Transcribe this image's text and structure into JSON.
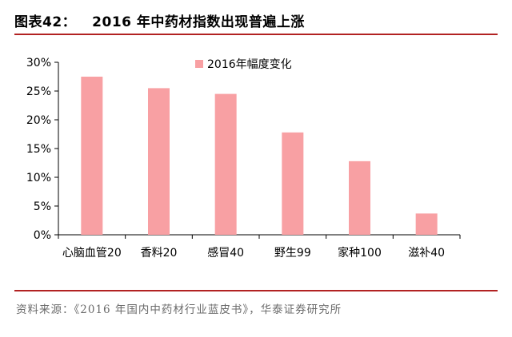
{
  "figure": {
    "label": "图表42：",
    "title": "2016 年中药材指数出现普遍上涨"
  },
  "source": "资料来源：《2016 年国内中药材行业蓝皮书》，华泰证券研究所",
  "colors": {
    "bar": "#f8a0a3",
    "rule": "#b22222",
    "axis": "#000000"
  },
  "chart_data": {
    "type": "bar",
    "title": "",
    "xlabel": "",
    "ylabel": "",
    "categories": [
      "心脑血管20",
      "香料20",
      "感冒40",
      "野生99",
      "家种100",
      "滋补40"
    ],
    "series": [
      {
        "name": "2016年幅度变化",
        "values": [
          27.5,
          25.5,
          24.5,
          17.8,
          12.8,
          3.7
        ]
      }
    ],
    "yticks": [
      "0%",
      "5%",
      "10%",
      "15%",
      "20%",
      "25%",
      "30%"
    ],
    "ylim": [
      0,
      30
    ],
    "grid": false,
    "legend": "top-right"
  }
}
